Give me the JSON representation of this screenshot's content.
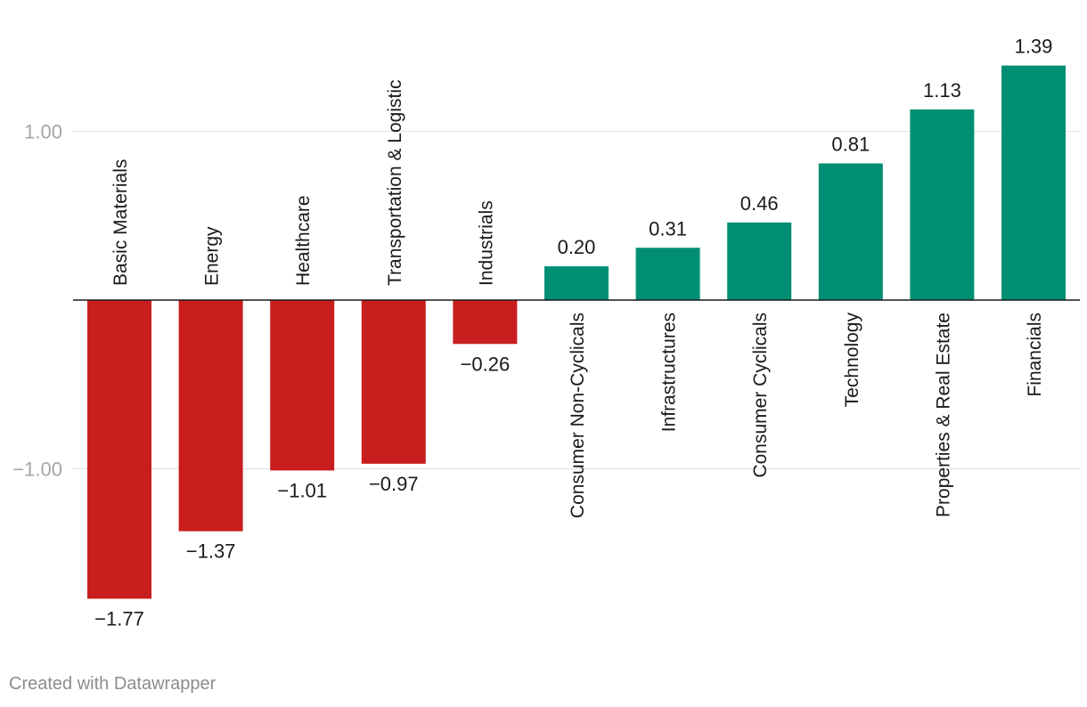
{
  "chart_data": {
    "type": "bar",
    "categories": [
      "Basic Materials",
      "Energy",
      "Healthcare",
      "Transportation & Logistic",
      "Industrials",
      "Consumer Non-Cyclicals",
      "Infrastructures",
      "Consumer Cyclicals",
      "Technology",
      "Properties & Real Estate",
      "Financials"
    ],
    "values": [
      -1.77,
      -1.37,
      -1.01,
      -0.97,
      -0.26,
      0.2,
      0.31,
      0.46,
      0.81,
      1.13,
      1.39
    ],
    "value_labels": [
      "−1.77",
      "−1.37",
      "−1.01",
      "−0.97",
      "−0.26",
      "0.20",
      "0.31",
      "0.46",
      "0.81",
      "1.13",
      "1.39"
    ],
    "y_ticks": [
      1.0,
      -1.0
    ],
    "y_tick_labels": [
      "1.00",
      "−1.00"
    ],
    "grid": true,
    "colors": {
      "negative": "#c91e1e",
      "positive": "#008f72"
    }
  },
  "footer": {
    "credit": "Created with Datawrapper"
  }
}
